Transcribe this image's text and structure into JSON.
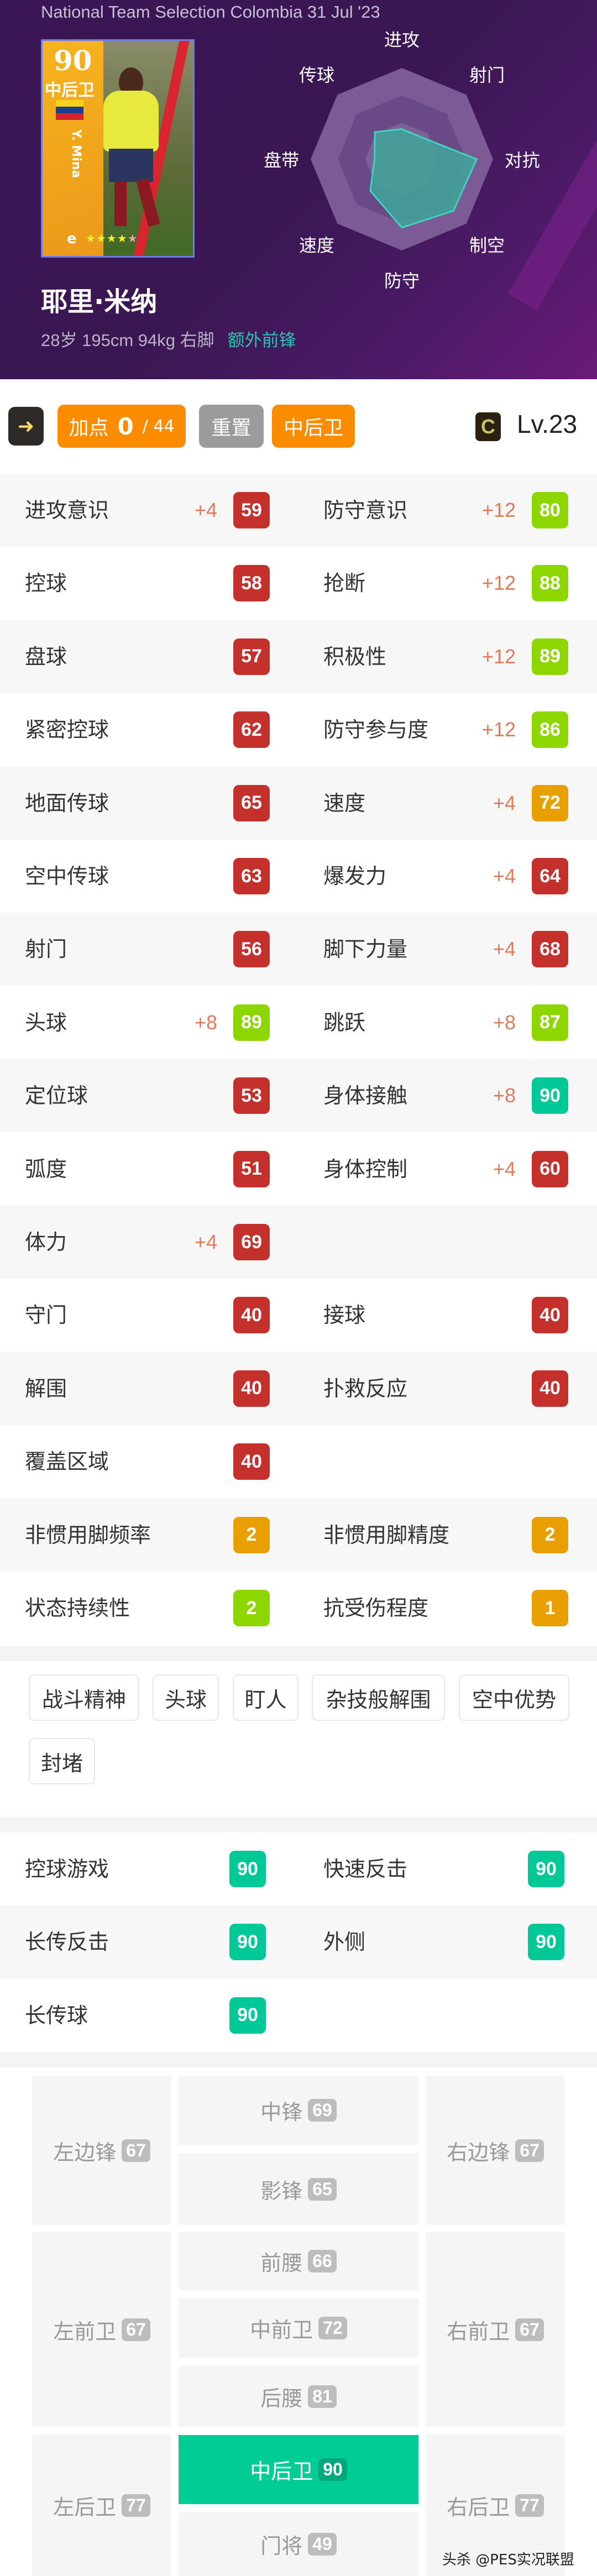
{
  "header": {
    "title": "National Team Selection Colombia 31 Jul '23",
    "card": {
      "rating": "90",
      "position": "中后卫",
      "name": "Y. Mina",
      "logo": "e",
      "stars": 4,
      "max_stars": 5,
      "flag_colors": [
        "#f7d21c",
        "#1e3f8f",
        "#d2232f"
      ]
    },
    "radar": {
      "labels": [
        "进攻",
        "射门",
        "对抗",
        "制空",
        "防守",
        "速度",
        "盘带",
        "传球"
      ],
      "values_percent": [
        33,
        33,
        82,
        80,
        75,
        49,
        30,
        42
      ],
      "fill_color": "#3fa59a",
      "stroke_color": "#3fd4bf"
    },
    "player_name": "耶里·米纳",
    "info": "28岁 195cm 94kg 右脚",
    "extra_position": "额外前锋"
  },
  "toolbar": {
    "arrow_icon": "arrow-right-icon",
    "add_label": "加点",
    "add_used": "0",
    "add_total": "/ 44",
    "reset_label": "重置",
    "position_label": "中后卫",
    "condition": "C",
    "level": "Lv.23"
  },
  "colors": {
    "red": "#c4302b",
    "green": "#8ed600",
    "orange": "#e8a000",
    "teal": "#00c896"
  },
  "stats": [
    [
      {
        "label": "进攻意识",
        "plus": "+4",
        "value": "59",
        "color": "red"
      },
      {
        "label": "防守意识",
        "plus": "+12",
        "value": "80",
        "color": "green"
      }
    ],
    [
      {
        "label": "控球",
        "plus": "",
        "value": "58",
        "color": "red"
      },
      {
        "label": "抢断",
        "plus": "+12",
        "value": "88",
        "color": "green"
      }
    ],
    [
      {
        "label": "盘球",
        "plus": "",
        "value": "57",
        "color": "red"
      },
      {
        "label": "积极性",
        "plus": "+12",
        "value": "89",
        "color": "green"
      }
    ],
    [
      {
        "label": "紧密控球",
        "plus": "",
        "value": "62",
        "color": "red"
      },
      {
        "label": "防守参与度",
        "plus": "+12",
        "value": "86",
        "color": "green"
      }
    ],
    [
      {
        "label": "地面传球",
        "plus": "",
        "value": "65",
        "color": "red"
      },
      {
        "label": "速度",
        "plus": "+4",
        "value": "72",
        "color": "orange"
      }
    ],
    [
      {
        "label": "空中传球",
        "plus": "",
        "value": "63",
        "color": "red"
      },
      {
        "label": "爆发力",
        "plus": "+4",
        "value": "64",
        "color": "red"
      }
    ],
    [
      {
        "label": "射门",
        "plus": "",
        "value": "56",
        "color": "red"
      },
      {
        "label": "脚下力量",
        "plus": "+4",
        "value": "68",
        "color": "red"
      }
    ],
    [
      {
        "label": "头球",
        "plus": "+8",
        "value": "89",
        "color": "green"
      },
      {
        "label": "跳跃",
        "plus": "+8",
        "value": "87",
        "color": "green"
      }
    ],
    [
      {
        "label": "定位球",
        "plus": "",
        "value": "53",
        "color": "red"
      },
      {
        "label": "身体接触",
        "plus": "+8",
        "value": "90",
        "color": "teal"
      }
    ],
    [
      {
        "label": "弧度",
        "plus": "",
        "value": "51",
        "color": "red"
      },
      {
        "label": "身体控制",
        "plus": "+4",
        "value": "60",
        "color": "red"
      }
    ],
    [
      {
        "label": "体力",
        "plus": "+4",
        "value": "69",
        "color": "red"
      },
      null
    ],
    [
      {
        "label": "守门",
        "plus": "",
        "value": "40",
        "color": "red"
      },
      {
        "label": "接球",
        "plus": "",
        "value": "40",
        "color": "red"
      }
    ],
    [
      {
        "label": "解围",
        "plus": "",
        "value": "40",
        "color": "red"
      },
      {
        "label": "扑救反应",
        "plus": "",
        "value": "40",
        "color": "red"
      }
    ],
    [
      {
        "label": "覆盖区域",
        "plus": "",
        "value": "40",
        "color": "red"
      },
      null
    ],
    [
      {
        "label": "非惯用脚频率",
        "plus": "",
        "value": "2",
        "color": "orange"
      },
      {
        "label": "非惯用脚精度",
        "plus": "",
        "value": "2",
        "color": "orange"
      }
    ],
    [
      {
        "label": "状态持续性",
        "plus": "",
        "value": "2",
        "color": "green"
      },
      {
        "label": "抗受伤程度",
        "plus": "",
        "value": "1",
        "color": "orange"
      }
    ]
  ],
  "skills": [
    "战斗精神",
    "头球",
    "盯人",
    "杂技般解围",
    "空中优势",
    "封堵"
  ],
  "playstyles": [
    [
      {
        "label": "控球游戏",
        "value": "90"
      },
      {
        "label": "快速反击",
        "value": "90"
      }
    ],
    [
      {
        "label": "长传反击",
        "value": "90"
      },
      {
        "label": "外侧",
        "value": "90"
      }
    ],
    [
      {
        "label": "长传球",
        "value": "90"
      },
      null
    ]
  ],
  "positions": [
    {
      "label": "左边锋",
      "value": "67"
    },
    {
      "label": "中锋",
      "value": "69"
    },
    {
      "label": "影锋",
      "value": "65"
    },
    {
      "label": "右边锋",
      "value": "67"
    },
    {
      "label": "左前卫",
      "value": "67"
    },
    {
      "label": "前腰",
      "value": "66"
    },
    {
      "label": "中前卫",
      "value": "72"
    },
    {
      "label": "后腰",
      "value": "81"
    },
    {
      "label": "右前卫",
      "value": "67"
    },
    {
      "label": "左后卫",
      "value": "77"
    },
    {
      "label": "中后卫",
      "value": "90",
      "active": true
    },
    {
      "label": "门将",
      "value": "49"
    },
    {
      "label": "右后卫",
      "value": "77"
    }
  ],
  "watermark": "头杀 @PES实况联盟"
}
